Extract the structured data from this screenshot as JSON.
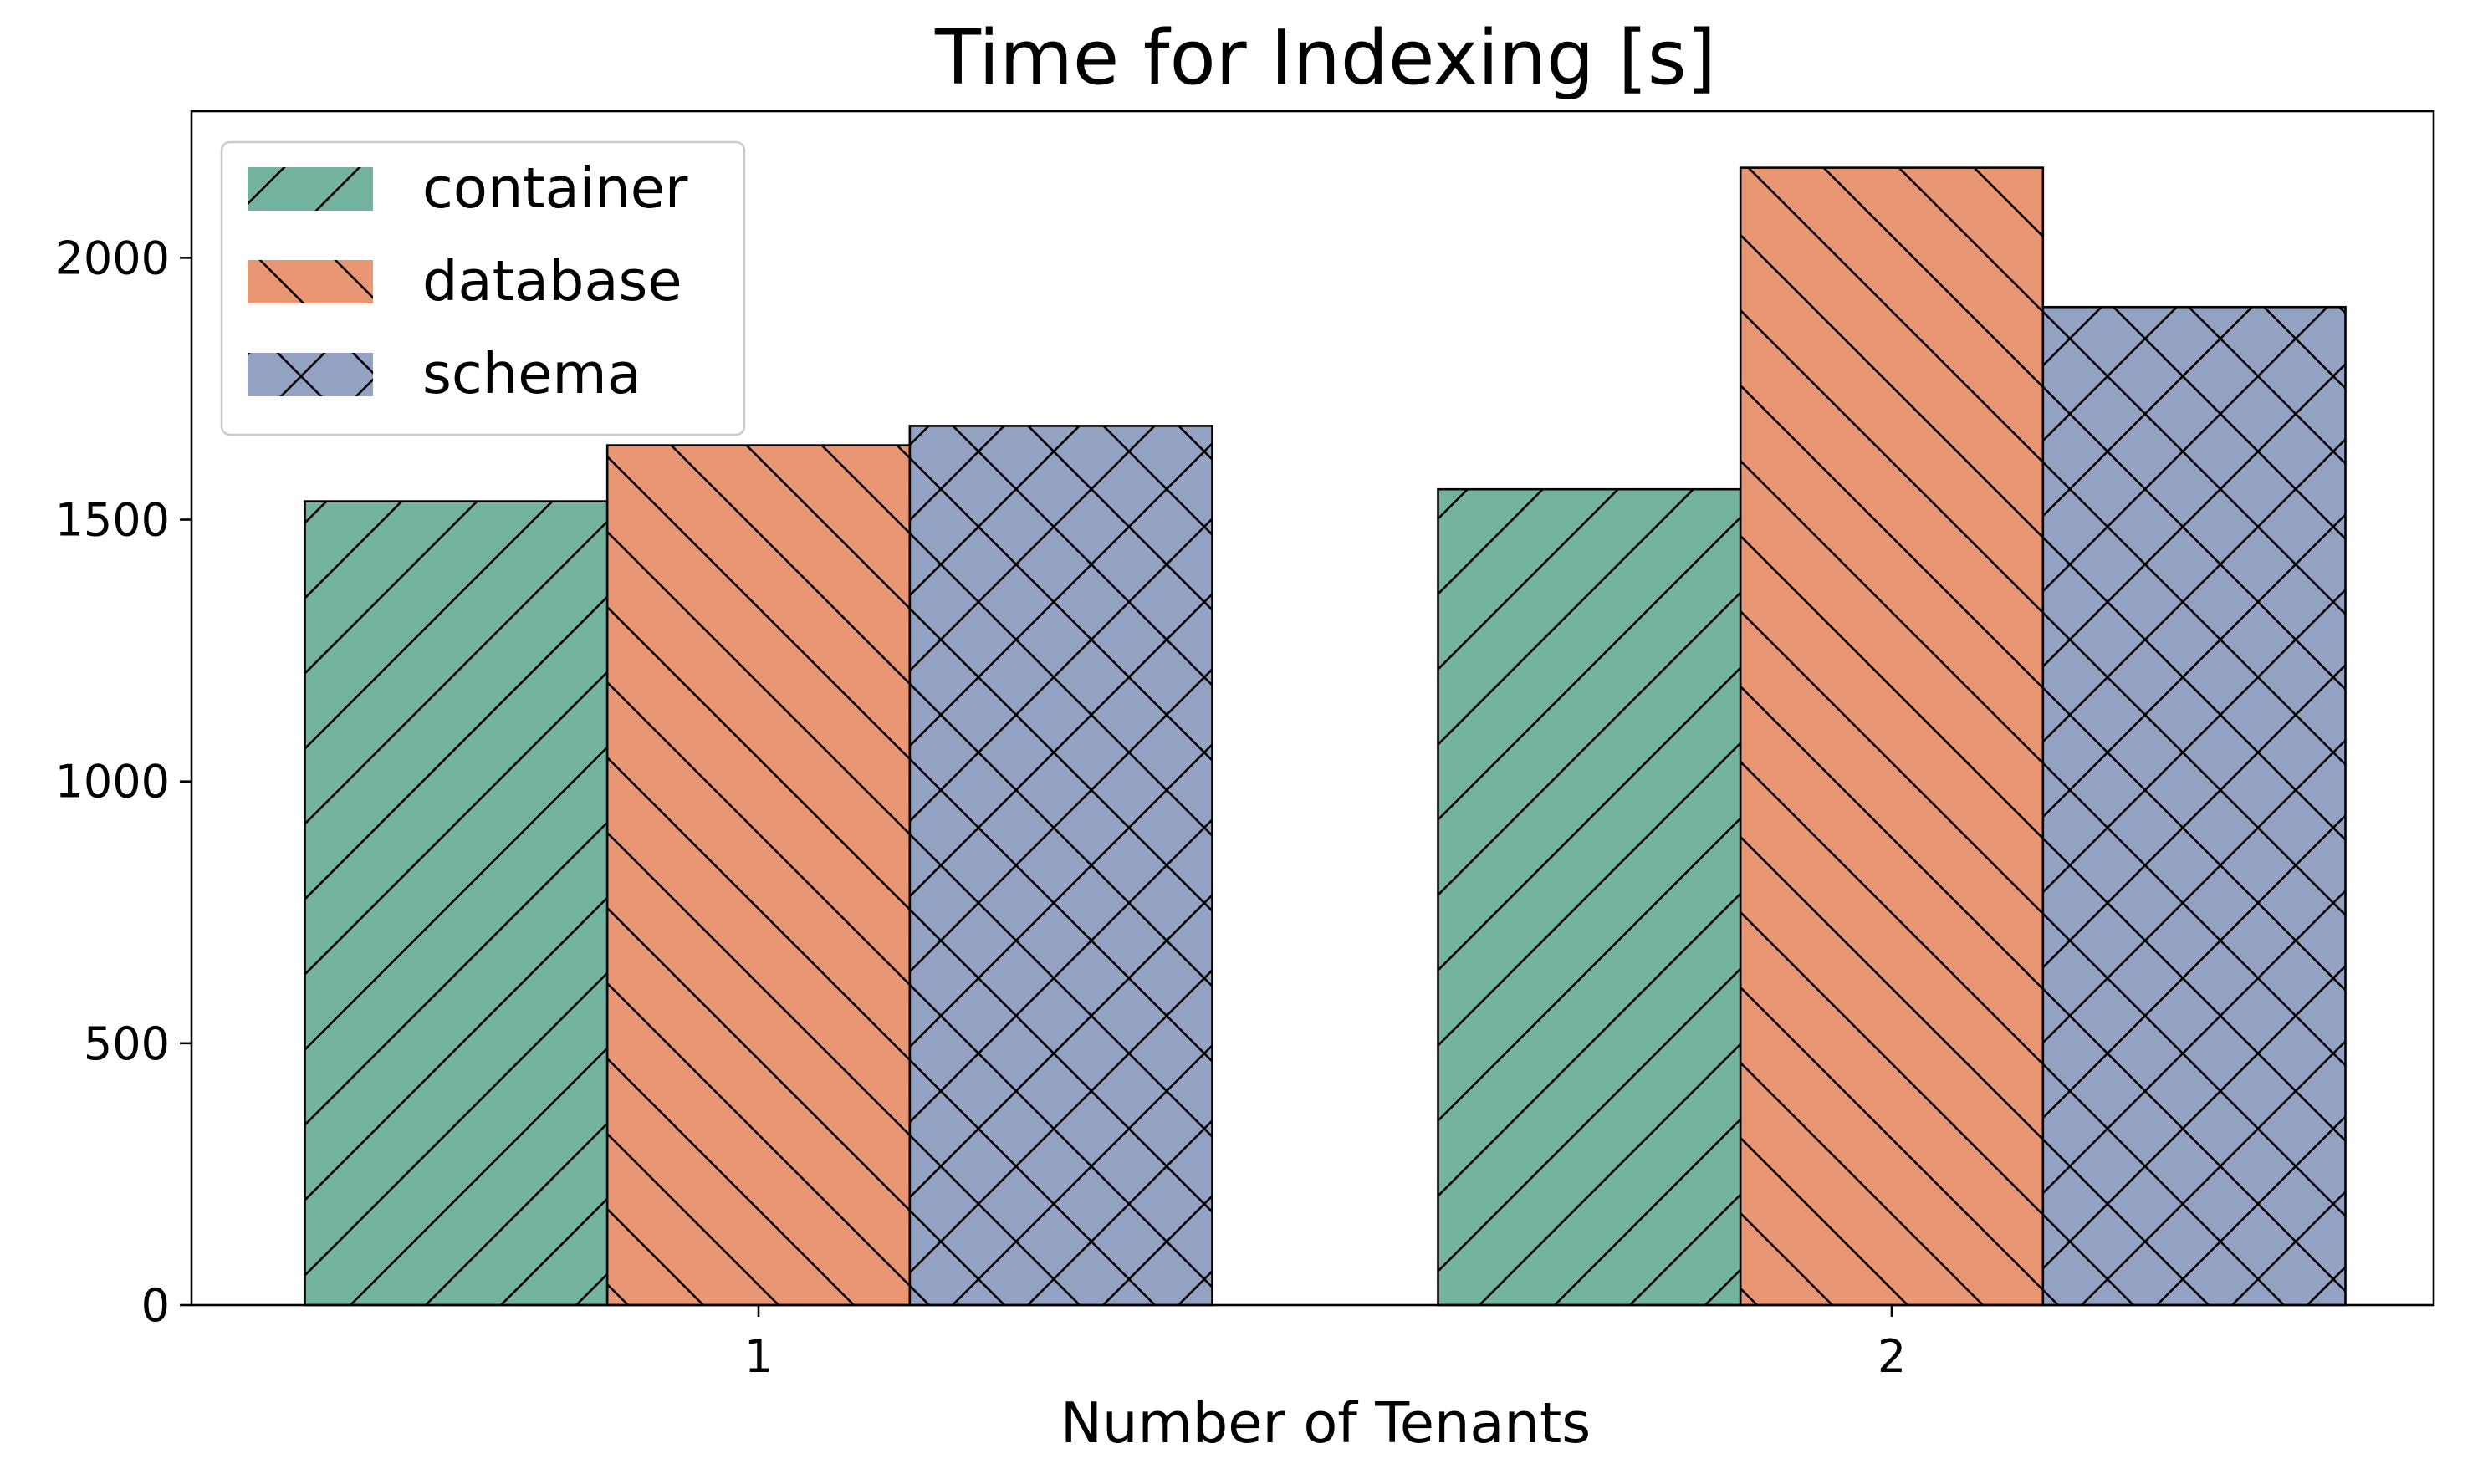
{
  "chart_data": {
    "type": "bar",
    "title": "Time for Indexing [s]",
    "xlabel": "Number of Tenants",
    "ylabel": "",
    "categories": [
      "1",
      "2"
    ],
    "series": [
      {
        "name": "container",
        "values": [
          1535,
          1558
        ],
        "color": "#73b3a0",
        "hatch": "forward-diagonal"
      },
      {
        "name": "database",
        "values": [
          1642,
          2172
        ],
        "color": "#e99675",
        "hatch": "back-diagonal"
      },
      {
        "name": "schema",
        "values": [
          1679,
          1906
        ],
        "color": "#93a2c2",
        "hatch": "cross"
      }
    ],
    "ylim": [
      0,
      2280
    ],
    "yticks": [
      0,
      500,
      1000,
      1500,
      2000
    ],
    "grid": false,
    "legend_position": "top-left"
  }
}
